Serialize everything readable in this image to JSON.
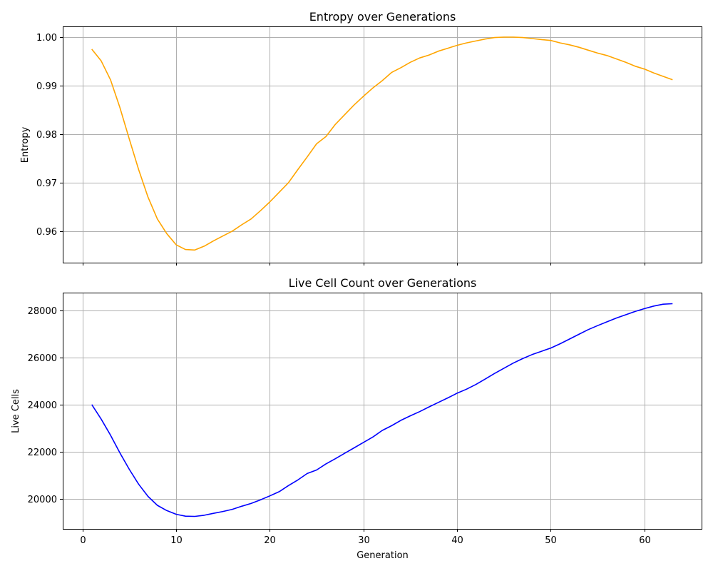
{
  "chart_data": [
    {
      "type": "line",
      "title": "Entropy over Generations",
      "xlabel": "",
      "ylabel": "Entropy",
      "xlim": [
        -2.1,
        66.1
      ],
      "ylim": [
        0.9535,
        1.0022
      ],
      "xticks": [
        0,
        10,
        20,
        30,
        40,
        50,
        60
      ],
      "xtick_labels_visible": false,
      "yticks": [
        0.96,
        0.97,
        0.98,
        0.99,
        1.0
      ],
      "ytick_labels": [
        "0.96",
        "0.97",
        "0.98",
        "0.99",
        "1.00"
      ],
      "grid": true,
      "color": "#ffa500",
      "series": [
        {
          "x": [
            1,
            2,
            3,
            4,
            5,
            6,
            7,
            8,
            9,
            10,
            11,
            12,
            13,
            14,
            15,
            16,
            17,
            18,
            19,
            20,
            21,
            22,
            23,
            24,
            25,
            26,
            27,
            28,
            29,
            30,
            31,
            32,
            33,
            34,
            35,
            36,
            37,
            38,
            39,
            40,
            41,
            42,
            43,
            44,
            45,
            46,
            47,
            48,
            49,
            50,
            51,
            52,
            53,
            54,
            55,
            56,
            57,
            58,
            59,
            60,
            61,
            62,
            63
          ],
          "y": [
            0.9975,
            0.9951,
            0.9912,
            0.9855,
            0.979,
            0.9727,
            0.967,
            0.9625,
            0.9595,
            0.9572,
            0.9562,
            0.9561,
            0.9569,
            0.958,
            0.959,
            0.96,
            0.9613,
            0.9625,
            0.9642,
            0.966,
            0.968,
            0.97,
            0.9727,
            0.9753,
            0.978,
            0.9795,
            0.982,
            0.984,
            0.986,
            0.9878,
            0.9895,
            0.991,
            0.9927,
            0.9937,
            0.9948,
            0.9957,
            0.9963,
            0.9971,
            0.9977,
            0.9983,
            0.9988,
            0.9992,
            0.9996,
            0.9999,
            1.0,
            1.0,
            0.9999,
            0.9997,
            0.9995,
            0.9993,
            0.9988,
            0.9984,
            0.9979,
            0.9973,
            0.9967,
            0.9962,
            0.9955,
            0.9948,
            0.994,
            0.9934,
            0.9926,
            0.9919,
            0.9912
          ]
        }
      ]
    },
    {
      "type": "line",
      "title": "Live Cell Count over Generations",
      "xlabel": "Generation",
      "ylabel": "Live Cells",
      "xlim": [
        -2.1,
        66.1
      ],
      "ylim": [
        18720,
        28750
      ],
      "xticks": [
        0,
        10,
        20,
        30,
        40,
        50,
        60
      ],
      "xtick_labels": [
        "0",
        "10",
        "20",
        "30",
        "40",
        "50",
        "60"
      ],
      "yticks": [
        20000,
        22000,
        24000,
        26000,
        28000
      ],
      "ytick_labels": [
        "20000",
        "22000",
        "24000",
        "26000",
        "28000"
      ],
      "grid": true,
      "color": "#0000ff",
      "series": [
        {
          "x": [
            1,
            2,
            3,
            4,
            5,
            6,
            7,
            8,
            9,
            10,
            11,
            12,
            13,
            14,
            15,
            16,
            17,
            18,
            19,
            20,
            21,
            22,
            23,
            24,
            25,
            26,
            27,
            28,
            29,
            30,
            31,
            32,
            33,
            34,
            35,
            36,
            37,
            38,
            39,
            40,
            41,
            42,
            43,
            44,
            45,
            46,
            47,
            48,
            49,
            50,
            51,
            52,
            53,
            54,
            55,
            56,
            57,
            58,
            59,
            60,
            61,
            62,
            63
          ],
          "y": [
            24000,
            23380,
            22700,
            21950,
            21250,
            20620,
            20100,
            19720,
            19500,
            19340,
            19260,
            19250,
            19300,
            19380,
            19460,
            19550,
            19680,
            19800,
            19950,
            20120,
            20300,
            20560,
            20800,
            21070,
            21220,
            21480,
            21700,
            21930,
            22160,
            22390,
            22620,
            22900,
            23100,
            23330,
            23520,
            23700,
            23900,
            24090,
            24280,
            24480,
            24650,
            24850,
            25080,
            25320,
            25540,
            25760,
            25950,
            26120,
            26260,
            26400,
            26580,
            26780,
            26980,
            27180,
            27350,
            27510,
            27670,
            27810,
            27950,
            28070,
            28180,
            28260,
            28280
          ]
        }
      ]
    }
  ]
}
